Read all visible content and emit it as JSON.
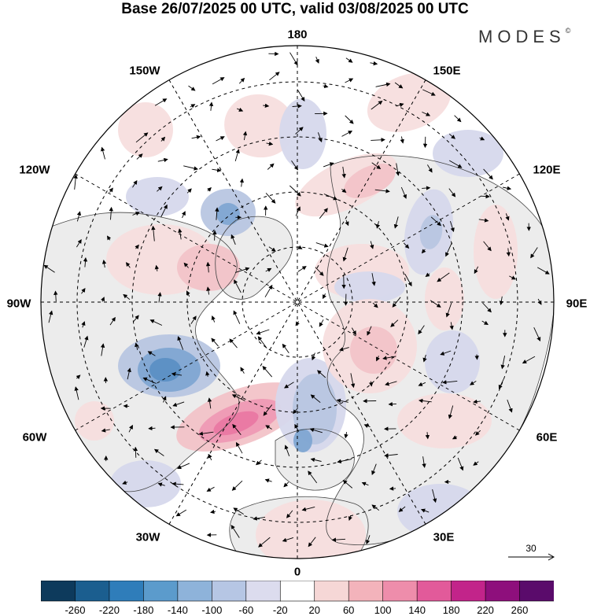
{
  "title": "Base 26/07/2025 00 UTC, valid 03/08/2025 00 UTC",
  "logo": "MODES",
  "logo_mark": "©",
  "longitude_labels": {
    "top": "180",
    "top_left": "150W",
    "top_right": "150E",
    "upper_left": "120W",
    "upper_right": "120E",
    "left": "90W",
    "right": "90E",
    "lower_left": "60W",
    "lower_right": "60E",
    "bottom_left": "30W",
    "bottom_right": "30E",
    "bottom": "0"
  },
  "reference_vector": {
    "label": "30"
  },
  "colorbar": {
    "ticks": [
      "-260",
      "-220",
      "-180",
      "-140",
      "-100",
      "-60",
      "-20",
      "20",
      "60",
      "100",
      "140",
      "180",
      "220",
      "260"
    ],
    "colors": [
      "#0d3a5c",
      "#1b5e8f",
      "#2f7dba",
      "#5b9bcc",
      "#8eb3da",
      "#b6c6e4",
      "#dcdcee",
      "#ffffff",
      "#f6d7d6",
      "#f3b3bb",
      "#ee8dab",
      "#e25a9a",
      "#c2248a",
      "#8e0f7c",
      "#5a0b6b"
    ]
  },
  "anomaly_palette": {
    "land": "#ececec",
    "neg_light": "#d6d8ec",
    "neg_mid": "#b8c6e2",
    "neg_strong": "#7fa6d2",
    "neg_core": "#5b8fc4",
    "pos_light": "#f7dede",
    "pos_mid": "#f2c3c8",
    "pos_strong": "#ee9ab4",
    "pos_core": "#e978a3"
  }
}
